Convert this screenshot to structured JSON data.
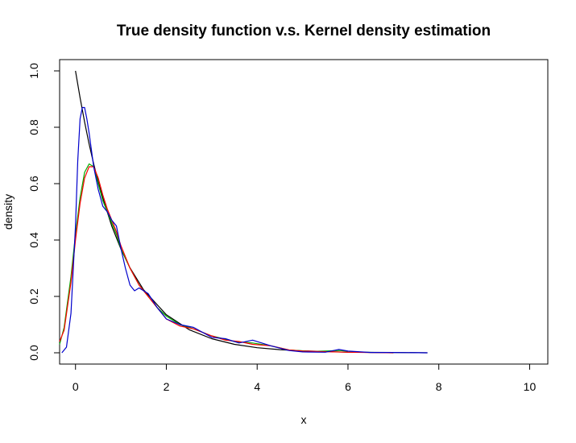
{
  "chart_data": {
    "type": "line",
    "title": "True density function v.s. Kernel density estimation",
    "xlabel": "x",
    "ylabel": "density",
    "xlim": [
      -0.35,
      10.4
    ],
    "ylim": [
      -0.04,
      1.04
    ],
    "x_ticks": [
      0,
      2,
      4,
      6,
      8,
      10
    ],
    "y_ticks": [
      0.0,
      0.2,
      0.4,
      0.6,
      0.8,
      1.0
    ],
    "x_tick_labels": [
      "0",
      "2",
      "4",
      "6",
      "8",
      "10"
    ],
    "y_tick_labels": [
      "0.0",
      "0.2",
      "0.4",
      "0.6",
      "0.8",
      "1.0"
    ],
    "grid": false,
    "series": [
      {
        "color": "#000000",
        "x": [
          0,
          0.1,
          0.2,
          0.3,
          0.4,
          0.5,
          0.6,
          0.8,
          1.0,
          1.2,
          1.5,
          2.0,
          2.5,
          3.0,
          3.5,
          4.0,
          4.5,
          5.0,
          6.0,
          7.0,
          7.75
        ],
        "y": [
          1.0,
          0.905,
          0.819,
          0.741,
          0.67,
          0.607,
          0.549,
          0.449,
          0.368,
          0.301,
          0.223,
          0.135,
          0.082,
          0.05,
          0.03,
          0.018,
          0.011,
          0.007,
          0.002,
          0.001,
          0.0
        ]
      },
      {
        "color": "#00aa00",
        "x": [
          -0.35,
          -0.25,
          -0.1,
          0.0,
          0.1,
          0.2,
          0.3,
          0.4,
          0.5,
          0.6,
          0.7,
          0.8,
          0.9,
          1.0,
          1.2,
          1.4,
          1.6,
          1.8,
          2.0,
          2.3,
          2.6,
          3.0,
          3.5,
          3.9,
          4.3,
          4.7,
          5.2,
          5.8,
          6.3,
          7.0
        ],
        "y": [
          0.03,
          0.09,
          0.27,
          0.42,
          0.55,
          0.64,
          0.67,
          0.66,
          0.6,
          0.54,
          0.5,
          0.46,
          0.42,
          0.37,
          0.3,
          0.24,
          0.2,
          0.16,
          0.13,
          0.1,
          0.085,
          0.06,
          0.04,
          0.035,
          0.025,
          0.01,
          0.005,
          0.008,
          0.002,
          0.0
        ]
      },
      {
        "color": "#ff0000",
        "x": [
          -0.35,
          -0.25,
          -0.1,
          0.0,
          0.1,
          0.2,
          0.3,
          0.4,
          0.5,
          0.6,
          0.7,
          0.8,
          0.9,
          1.0,
          1.2,
          1.4,
          1.6,
          1.8,
          2.0,
          2.3,
          2.6,
          3.0,
          3.3,
          3.6,
          3.9,
          4.3,
          4.7,
          5.0,
          5.5,
          6.0,
          6.5,
          7.0
        ],
        "y": [
          0.04,
          0.08,
          0.25,
          0.4,
          0.53,
          0.62,
          0.66,
          0.66,
          0.62,
          0.56,
          0.51,
          0.47,
          0.43,
          0.38,
          0.3,
          0.24,
          0.2,
          0.16,
          0.12,
          0.095,
          0.085,
          0.06,
          0.045,
          0.04,
          0.03,
          0.025,
          0.01,
          0.006,
          0.004,
          0.002,
          0.001,
          0.0
        ]
      },
      {
        "color": "#0000cc",
        "x": [
          -0.3,
          -0.2,
          -0.1,
          0.0,
          0.05,
          0.1,
          0.15,
          0.2,
          0.25,
          0.3,
          0.4,
          0.5,
          0.6,
          0.7,
          0.8,
          0.9,
          1.0,
          1.1,
          1.2,
          1.3,
          1.4,
          1.6,
          1.8,
          2.0,
          2.3,
          2.6,
          3.0,
          3.3,
          3.6,
          3.9,
          4.3,
          4.7,
          5.0,
          5.5,
          5.8,
          6.0,
          6.5,
          7.0,
          7.75
        ],
        "y": [
          0.0,
          0.02,
          0.14,
          0.45,
          0.68,
          0.83,
          0.87,
          0.87,
          0.83,
          0.78,
          0.66,
          0.58,
          0.52,
          0.5,
          0.47,
          0.45,
          0.37,
          0.3,
          0.24,
          0.22,
          0.23,
          0.21,
          0.16,
          0.12,
          0.1,
          0.09,
          0.055,
          0.05,
          0.035,
          0.045,
          0.025,
          0.008,
          0.003,
          0.002,
          0.012,
          0.006,
          0.001,
          0.001,
          0.0
        ]
      }
    ]
  }
}
